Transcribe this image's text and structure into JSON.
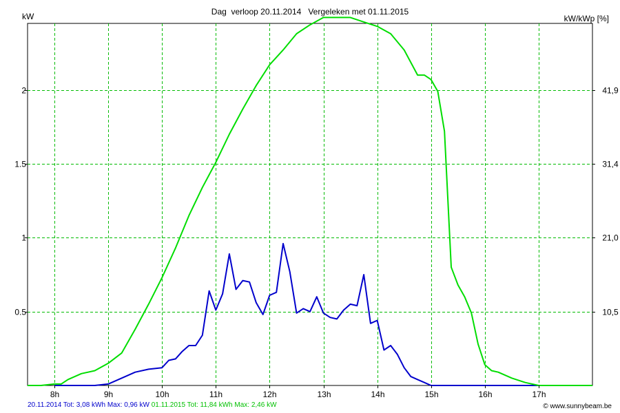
{
  "chart_data": {
    "type": "line",
    "title": "Dag  verloop 20.11.2014   Vergeleken met 01.11.2015",
    "ylabel_left": "kW",
    "ylabel_right": "kW/kWp [%]",
    "ylim": [
      0,
      2.45
    ],
    "xlim": [
      7.5,
      18.0
    ],
    "x_ticks": [
      8,
      9,
      10,
      11,
      12,
      13,
      14,
      15,
      16,
      17
    ],
    "x_tick_labels": [
      "8h",
      "9h",
      "10h",
      "11h",
      "12h",
      "13h",
      "14h",
      "15h",
      "16h",
      "17h"
    ],
    "y_ticks_left": [
      0.5,
      1,
      1.5,
      2
    ],
    "y_tick_labels_left": [
      "0.5",
      "1",
      "1.5",
      "2"
    ],
    "y_tick_labels_right": [
      "10,5",
      "21,0",
      "31,4",
      "41,9"
    ],
    "grid": true,
    "colors": {
      "series_2014": "#0000cc",
      "series_2015": "#00dd00",
      "grid": "#00bb00",
      "axis": "#000000"
    },
    "series": [
      {
        "name": "20.11.2014",
        "color": "#0000cc",
        "x": [
          8.0,
          8.25,
          8.5,
          8.75,
          9.0,
          9.25,
          9.5,
          9.75,
          10.0,
          10.125,
          10.25,
          10.375,
          10.5,
          10.625,
          10.75,
          10.875,
          11.0,
          11.125,
          11.25,
          11.375,
          11.5,
          11.625,
          11.75,
          11.875,
          12.0,
          12.125,
          12.25,
          12.375,
          12.5,
          12.625,
          12.75,
          12.875,
          13.0,
          13.125,
          13.25,
          13.375,
          13.5,
          13.625,
          13.75,
          13.875,
          14.0,
          14.125,
          14.25,
          14.375,
          14.5,
          14.625,
          14.75,
          14.875,
          15.0,
          15.125,
          15.25,
          15.375,
          15.5,
          15.625,
          15.75,
          15.875,
          16.0,
          16.25,
          16.5,
          16.75,
          17.0
        ],
        "values": [
          0.0,
          0.0,
          0.0,
          0.0,
          0.01,
          0.05,
          0.09,
          0.11,
          0.12,
          0.17,
          0.18,
          0.23,
          0.27,
          0.27,
          0.34,
          0.64,
          0.51,
          0.62,
          0.89,
          0.65,
          0.71,
          0.7,
          0.56,
          0.48,
          0.61,
          0.63,
          0.96,
          0.77,
          0.49,
          0.52,
          0.5,
          0.6,
          0.49,
          0.46,
          0.45,
          0.51,
          0.55,
          0.54,
          0.75,
          0.42,
          0.44,
          0.24,
          0.27,
          0.21,
          0.12,
          0.06,
          0.04,
          0.02,
          0.0,
          0.0,
          0.0,
          0.0,
          0.0,
          0.0,
          0.0,
          0.0,
          0.0,
          0.0,
          0.0,
          0.0,
          0.0
        ]
      },
      {
        "name": "01.11.2015",
        "color": "#00dd00",
        "x": [
          7.5,
          7.75,
          8.0,
          8.125,
          8.25,
          8.5,
          8.75,
          9.0,
          9.25,
          9.5,
          9.75,
          10.0,
          10.25,
          10.5,
          10.75,
          11.0,
          11.25,
          11.5,
          11.75,
          12.0,
          12.25,
          12.5,
          12.75,
          13.0,
          13.25,
          13.5,
          13.75,
          14.0,
          14.25,
          14.5,
          14.75,
          14.875,
          15.0,
          15.125,
          15.25,
          15.375,
          15.5,
          15.625,
          15.75,
          15.875,
          16.0,
          16.125,
          16.25,
          16.5,
          16.75,
          17.0,
          17.25,
          17.5,
          17.75,
          18.0
        ],
        "values": [
          0.0,
          0.0,
          0.01,
          0.01,
          0.04,
          0.08,
          0.1,
          0.15,
          0.22,
          0.38,
          0.55,
          0.73,
          0.93,
          1.15,
          1.34,
          1.51,
          1.7,
          1.87,
          2.03,
          2.17,
          2.27,
          2.38,
          2.44,
          2.49,
          2.49,
          2.49,
          2.46,
          2.43,
          2.38,
          2.27,
          2.1,
          2.1,
          2.07,
          1.99,
          1.72,
          0.8,
          0.68,
          0.6,
          0.49,
          0.28,
          0.14,
          0.1,
          0.09,
          0.05,
          0.02,
          0.0,
          0.0,
          0.0,
          0.0,
          0.0
        ]
      }
    ]
  },
  "footer": {
    "blue_text": "20.11.2014 Tot: 3,08 kWh Max: 0,96 kW",
    "green_text": "01.11.2015 Tot: 11,84 kWh Max: 2,46 kW",
    "credit": "© www.sunnybeam.be"
  }
}
